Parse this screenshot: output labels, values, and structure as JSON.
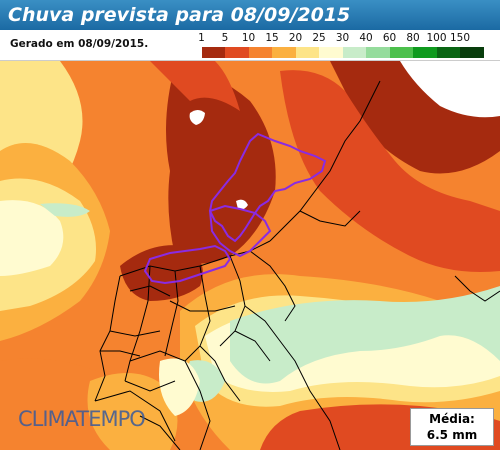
{
  "title": "Chuva prevista para 08/09/2015",
  "generated": "Gerado em 08/09/2015.",
  "legend": {
    "labels": [
      "1",
      "5",
      "10",
      "15",
      "20",
      "25",
      "30",
      "40",
      "60",
      "80",
      "100",
      "150"
    ],
    "colors": [
      "#ffffff",
      "#a52a0f",
      "#e04a21",
      "#f5832f",
      "#fbb040",
      "#fde488",
      "#fffbd0",
      "#c8ecc9",
      "#95dc9c",
      "#4cc04c",
      "#0f9a1e",
      "#0a6614",
      "#083d0c"
    ]
  },
  "logo": "CLIMATEMPO",
  "media": {
    "label": "Média:",
    "value": "6.5 mm"
  }
}
